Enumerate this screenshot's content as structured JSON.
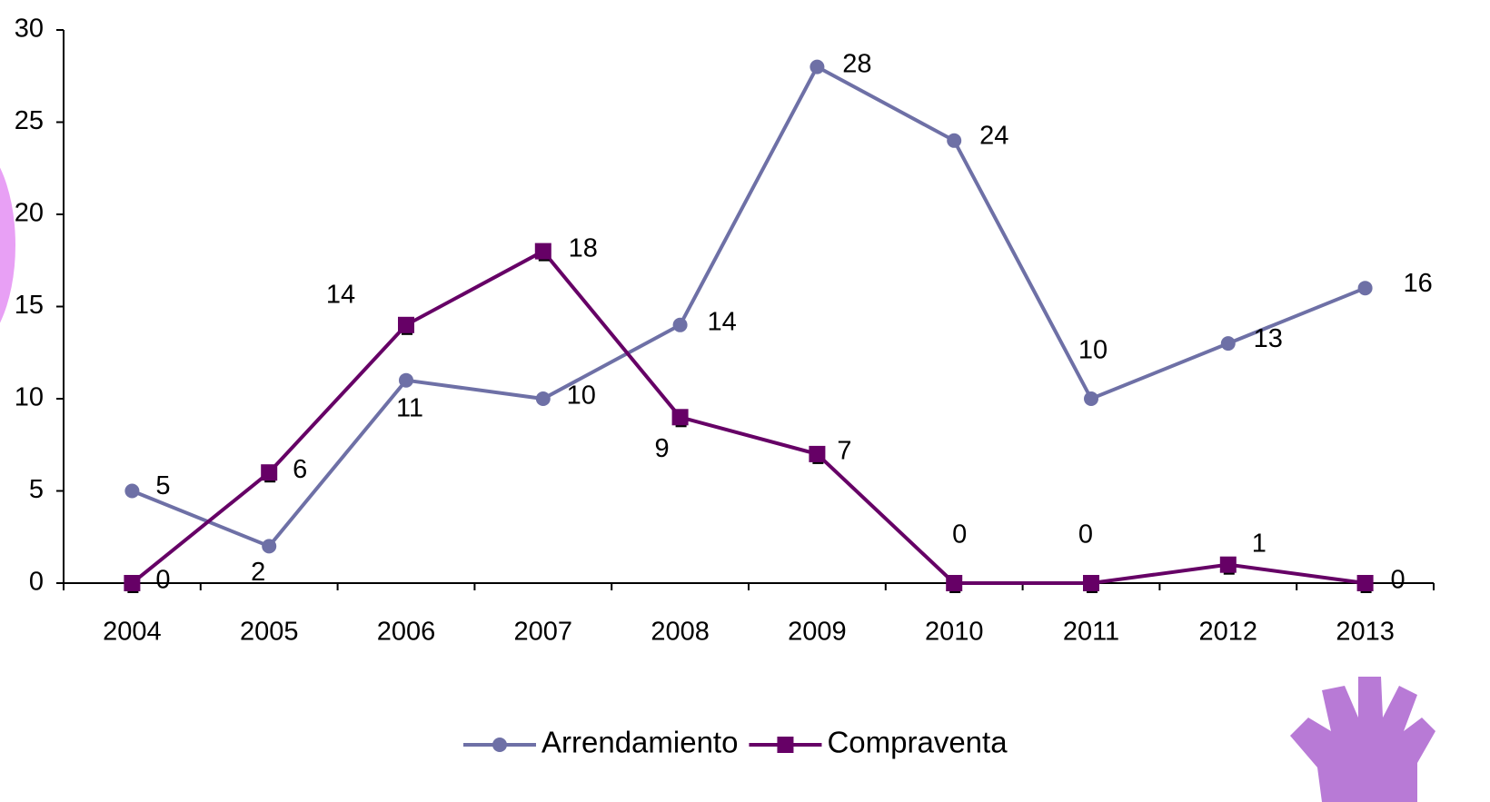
{
  "chart_data": {
    "type": "line",
    "categories": [
      "2004",
      "2005",
      "2006",
      "2007",
      "2008",
      "2009",
      "2010",
      "2011",
      "2012",
      "2013"
    ],
    "series": [
      {
        "name": "Arrendamiento",
        "color": "#6e70a6",
        "marker": "circle",
        "values": [
          5,
          2,
          11,
          10,
          14,
          28,
          24,
          10,
          13,
          16
        ]
      },
      {
        "name": "Compraventa",
        "color": "#660066",
        "marker": "square",
        "values": [
          0,
          6,
          14,
          18,
          9,
          7,
          0,
          0,
          1,
          0
        ]
      }
    ],
    "ylim": [
      0,
      30
    ],
    "yticks": [
      0,
      5,
      10,
      15,
      20,
      25,
      30
    ],
    "grid": false,
    "legend": "bottom"
  }
}
